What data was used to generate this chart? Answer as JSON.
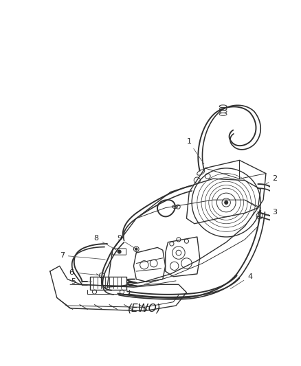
{
  "bg_color": "#ffffff",
  "line_color": "#303030",
  "label_color": "#202020",
  "figsize": [
    4.38,
    5.33
  ],
  "dpi": 100,
  "lw_hose": 1.4,
  "lw_body": 1.0,
  "lw_thin": 0.7,
  "lw_leader": 0.6,
  "font_size": 8
}
